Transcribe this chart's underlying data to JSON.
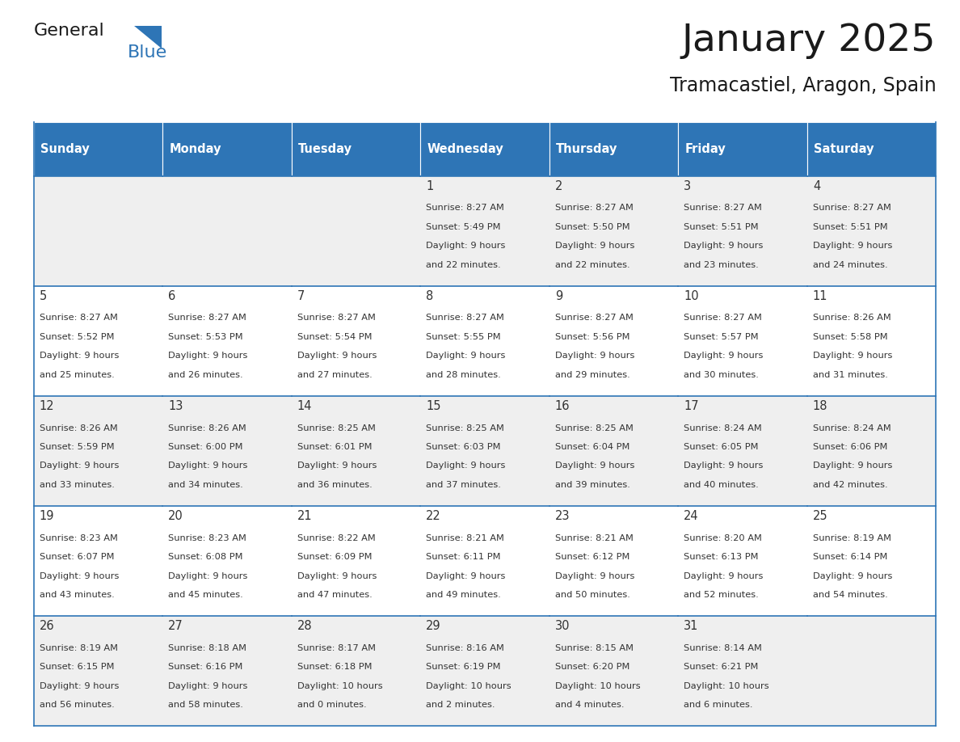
{
  "title": "January 2025",
  "subtitle": "Tramacastiel, Aragon, Spain",
  "header_bg": "#2E75B6",
  "header_text": "#FFFFFF",
  "row_bg_odd": "#EFEFEF",
  "row_bg_even": "#FFFFFF",
  "day_names": [
    "Sunday",
    "Monday",
    "Tuesday",
    "Wednesday",
    "Thursday",
    "Friday",
    "Saturday"
  ],
  "grid_color": "#2E75B6",
  "day_number_color": "#333333",
  "cell_text_color": "#333333",
  "calendar_data": [
    [
      {
        "day": "",
        "sunrise": "",
        "sunset": "",
        "daylight": ""
      },
      {
        "day": "",
        "sunrise": "",
        "sunset": "",
        "daylight": ""
      },
      {
        "day": "",
        "sunrise": "",
        "sunset": "",
        "daylight": ""
      },
      {
        "day": "1",
        "sunrise": "8:27 AM",
        "sunset": "5:49 PM",
        "daylight": "9 hours",
        "daylight2": "and 22 minutes."
      },
      {
        "day": "2",
        "sunrise": "8:27 AM",
        "sunset": "5:50 PM",
        "daylight": "9 hours",
        "daylight2": "and 22 minutes."
      },
      {
        "day": "3",
        "sunrise": "8:27 AM",
        "sunset": "5:51 PM",
        "daylight": "9 hours",
        "daylight2": "and 23 minutes."
      },
      {
        "day": "4",
        "sunrise": "8:27 AM",
        "sunset": "5:51 PM",
        "daylight": "9 hours",
        "daylight2": "and 24 minutes."
      }
    ],
    [
      {
        "day": "5",
        "sunrise": "8:27 AM",
        "sunset": "5:52 PM",
        "daylight": "9 hours",
        "daylight2": "and 25 minutes."
      },
      {
        "day": "6",
        "sunrise": "8:27 AM",
        "sunset": "5:53 PM",
        "daylight": "9 hours",
        "daylight2": "and 26 minutes."
      },
      {
        "day": "7",
        "sunrise": "8:27 AM",
        "sunset": "5:54 PM",
        "daylight": "9 hours",
        "daylight2": "and 27 minutes."
      },
      {
        "day": "8",
        "sunrise": "8:27 AM",
        "sunset": "5:55 PM",
        "daylight": "9 hours",
        "daylight2": "and 28 minutes."
      },
      {
        "day": "9",
        "sunrise": "8:27 AM",
        "sunset": "5:56 PM",
        "daylight": "9 hours",
        "daylight2": "and 29 minutes."
      },
      {
        "day": "10",
        "sunrise": "8:27 AM",
        "sunset": "5:57 PM",
        "daylight": "9 hours",
        "daylight2": "and 30 minutes."
      },
      {
        "day": "11",
        "sunrise": "8:26 AM",
        "sunset": "5:58 PM",
        "daylight": "9 hours",
        "daylight2": "and 31 minutes."
      }
    ],
    [
      {
        "day": "12",
        "sunrise": "8:26 AM",
        "sunset": "5:59 PM",
        "daylight": "9 hours",
        "daylight2": "and 33 minutes."
      },
      {
        "day": "13",
        "sunrise": "8:26 AM",
        "sunset": "6:00 PM",
        "daylight": "9 hours",
        "daylight2": "and 34 minutes."
      },
      {
        "day": "14",
        "sunrise": "8:25 AM",
        "sunset": "6:01 PM",
        "daylight": "9 hours",
        "daylight2": "and 36 minutes."
      },
      {
        "day": "15",
        "sunrise": "8:25 AM",
        "sunset": "6:03 PM",
        "daylight": "9 hours",
        "daylight2": "and 37 minutes."
      },
      {
        "day": "16",
        "sunrise": "8:25 AM",
        "sunset": "6:04 PM",
        "daylight": "9 hours",
        "daylight2": "and 39 minutes."
      },
      {
        "day": "17",
        "sunrise": "8:24 AM",
        "sunset": "6:05 PM",
        "daylight": "9 hours",
        "daylight2": "and 40 minutes."
      },
      {
        "day": "18",
        "sunrise": "8:24 AM",
        "sunset": "6:06 PM",
        "daylight": "9 hours",
        "daylight2": "and 42 minutes."
      }
    ],
    [
      {
        "day": "19",
        "sunrise": "8:23 AM",
        "sunset": "6:07 PM",
        "daylight": "9 hours",
        "daylight2": "and 43 minutes."
      },
      {
        "day": "20",
        "sunrise": "8:23 AM",
        "sunset": "6:08 PM",
        "daylight": "9 hours",
        "daylight2": "and 45 minutes."
      },
      {
        "day": "21",
        "sunrise": "8:22 AM",
        "sunset": "6:09 PM",
        "daylight": "9 hours",
        "daylight2": "and 47 minutes."
      },
      {
        "day": "22",
        "sunrise": "8:21 AM",
        "sunset": "6:11 PM",
        "daylight": "9 hours",
        "daylight2": "and 49 minutes."
      },
      {
        "day": "23",
        "sunrise": "8:21 AM",
        "sunset": "6:12 PM",
        "daylight": "9 hours",
        "daylight2": "and 50 minutes."
      },
      {
        "day": "24",
        "sunrise": "8:20 AM",
        "sunset": "6:13 PM",
        "daylight": "9 hours",
        "daylight2": "and 52 minutes."
      },
      {
        "day": "25",
        "sunrise": "8:19 AM",
        "sunset": "6:14 PM",
        "daylight": "9 hours",
        "daylight2": "and 54 minutes."
      }
    ],
    [
      {
        "day": "26",
        "sunrise": "8:19 AM",
        "sunset": "6:15 PM",
        "daylight": "9 hours",
        "daylight2": "and 56 minutes."
      },
      {
        "day": "27",
        "sunrise": "8:18 AM",
        "sunset": "6:16 PM",
        "daylight": "9 hours",
        "daylight2": "and 58 minutes."
      },
      {
        "day": "28",
        "sunrise": "8:17 AM",
        "sunset": "6:18 PM",
        "daylight": "10 hours",
        "daylight2": "and 0 minutes."
      },
      {
        "day": "29",
        "sunrise": "8:16 AM",
        "sunset": "6:19 PM",
        "daylight": "10 hours",
        "daylight2": "and 2 minutes."
      },
      {
        "day": "30",
        "sunrise": "8:15 AM",
        "sunset": "6:20 PM",
        "daylight": "10 hours",
        "daylight2": "and 4 minutes."
      },
      {
        "day": "31",
        "sunrise": "8:14 AM",
        "sunset": "6:21 PM",
        "daylight": "10 hours",
        "daylight2": "and 6 minutes."
      },
      {
        "day": "",
        "sunrise": "",
        "sunset": "",
        "daylight": "",
        "daylight2": ""
      }
    ]
  ]
}
